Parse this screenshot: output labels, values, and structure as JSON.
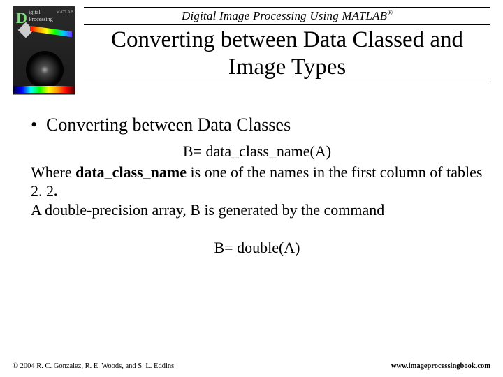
{
  "header": {
    "book_title_prefix": "Digital Image Processing Using MATLAB",
    "registered": "®",
    "cover": {
      "d": "D",
      "small1": "igital",
      "small2": "Processing",
      "matlab": "MATLAB"
    }
  },
  "title": "Converting between Data Classed and Image Types",
  "bullet": {
    "marker": "•",
    "text": "Converting between Data Classes"
  },
  "code1": "B= data_class_name(A)",
  "para1_a": "Where ",
  "para1_b": "data_class_name",
  "para1_c": " is one of the names in the first column of tables 2. 2",
  "para1_d": ".",
  "para2": "A double-precision array, B is generated by the command",
  "code2": "B= double(A)",
  "footer": {
    "copyright": "© 2004 R. C. Gonzalez, R. E. Woods, and S. L. Eddins",
    "url": "www.imageprocessingbook.com"
  },
  "colors": {
    "text": "#000000",
    "background": "#ffffff"
  }
}
